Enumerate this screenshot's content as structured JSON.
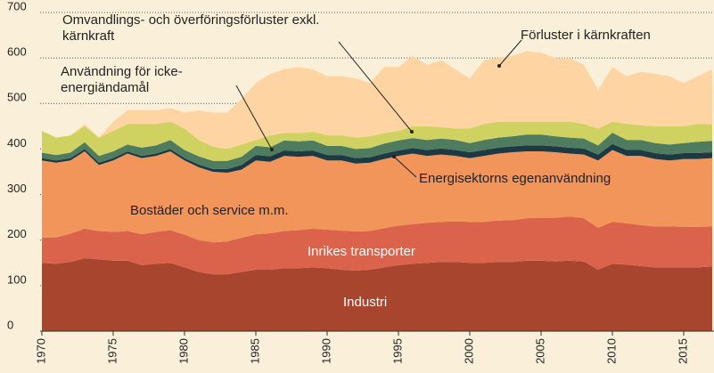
{
  "chart_data": {
    "type": "stacked-area",
    "x": [
      1970,
      1971,
      1972,
      1973,
      1974,
      1975,
      1976,
      1977,
      1978,
      1979,
      1980,
      1981,
      1982,
      1983,
      1984,
      1985,
      1986,
      1987,
      1988,
      1989,
      1990,
      1991,
      1992,
      1993,
      1994,
      1995,
      1996,
      1997,
      1998,
      1999,
      2000,
      2001,
      2002,
      2003,
      2004,
      2005,
      2006,
      2007,
      2008,
      2009,
      2010,
      2011,
      2012,
      2013,
      2014,
      2015,
      2016,
      2017
    ],
    "xlim": [
      1970,
      2017
    ],
    "xticks": [
      1970,
      1975,
      1980,
      1985,
      1990,
      1995,
      2000,
      2005,
      2010,
      2015
    ],
    "ylim": [
      0,
      700
    ],
    "yticks": [
      0,
      100,
      200,
      300,
      400,
      500,
      600,
      700
    ],
    "grid": true,
    "series": [
      {
        "name": "Industri",
        "color": "#a8452f",
        "values": [
          150,
          148,
          152,
          160,
          158,
          155,
          155,
          145,
          148,
          150,
          140,
          130,
          125,
          125,
          130,
          135,
          135,
          138,
          138,
          140,
          138,
          135,
          133,
          135,
          140,
          145,
          148,
          150,
          152,
          152,
          150,
          150,
          152,
          152,
          155,
          155,
          153,
          155,
          153,
          135,
          148,
          146,
          143,
          140,
          140,
          140,
          140,
          142
        ]
      },
      {
        "name": "Inrikes transporter",
        "color": "#dc634b",
        "values": [
          55,
          58,
          62,
          65,
          62,
          63,
          65,
          68,
          70,
          72,
          72,
          70,
          70,
          72,
          75,
          78,
          80,
          82,
          84,
          85,
          85,
          86,
          86,
          85,
          86,
          87,
          87,
          88,
          88,
          89,
          90,
          90,
          91,
          92,
          93,
          94,
          96,
          97,
          95,
          92,
          92,
          91,
          90,
          90,
          90,
          89,
          89,
          88
        ]
      },
      {
        "name": "Bostäder och service m.m.",
        "color": "#f1955b",
        "values": [
          170,
          164,
          161,
          170,
          145,
          157,
          170,
          167,
          167,
          173,
          163,
          160,
          155,
          151,
          150,
          162,
          157,
          165,
          161,
          160,
          152,
          154,
          149,
          150,
          152,
          153,
          155,
          147,
          148,
          144,
          140,
          145,
          147,
          149,
          147,
          146,
          144,
          138,
          140,
          148,
          158,
          148,
          152,
          148,
          145,
          149,
          149,
          150
        ]
      },
      {
        "name": "Energisektorns egenanvändning",
        "color": "#1c3944",
        "values": [
          5,
          5,
          5,
          5,
          5,
          5,
          5,
          5,
          5,
          5,
          5,
          6,
          6,
          8,
          10,
          12,
          12,
          12,
          12,
          12,
          12,
          12,
          12,
          12,
          12,
          12,
          12,
          13,
          13,
          13,
          13,
          13,
          13,
          13,
          13,
          13,
          13,
          13,
          13,
          13,
          13,
          13,
          13,
          13,
          13,
          13,
          13,
          13
        ]
      },
      {
        "name": "Användning för icke-energiändamål",
        "color": "#4f7b5f",
        "values": [
          12,
          12,
          12,
          15,
          15,
          15,
          15,
          18,
          18,
          20,
          18,
          18,
          18,
          18,
          18,
          20,
          20,
          22,
          22,
          22,
          20,
          20,
          20,
          20,
          22,
          22,
          22,
          22,
          22,
          22,
          20,
          22,
          22,
          22,
          24,
          24,
          22,
          22,
          22,
          20,
          25,
          22,
          22,
          22,
          22,
          22,
          25,
          25
        ]
      },
      {
        "name": "Omvandlings- och överföringsförluster exkl. kärnkraft",
        "color": "#cfd260",
        "values": [
          48,
          38,
          38,
          35,
          40,
          45,
          45,
          52,
          47,
          40,
          47,
          36,
          31,
          26,
          27,
          13,
          26,
          16,
          18,
          19,
          23,
          23,
          25,
          26,
          23,
          21,
          26,
          30,
          25,
          25,
          32,
          35,
          35,
          32,
          28,
          28,
          32,
          35,
          32,
          37,
          24,
          35,
          32,
          37,
          40,
          37,
          39,
          37
        ]
      },
      {
        "name": "Förluster i kärnkraften",
        "color": "#fdd4a2",
        "values": [
          0,
          0,
          0,
          5,
          0,
          20,
          30,
          30,
          30,
          30,
          35,
          65,
          75,
          80,
          100,
          125,
          135,
          140,
          145,
          137,
          130,
          130,
          130,
          117,
          145,
          140,
          155,
          135,
          147,
          130,
          110,
          140,
          140,
          145,
          155,
          152,
          140,
          140,
          130,
          85,
          120,
          105,
          118,
          115,
          110,
          95,
          105,
          120
        ]
      }
    ]
  }
}
